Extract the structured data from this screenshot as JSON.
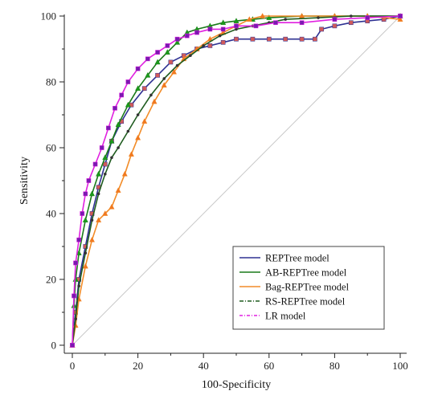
{
  "chart_data": {
    "type": "line",
    "title": "",
    "xlabel": "100-Specificity",
    "ylabel": "Sensitivity",
    "xlim": [
      0,
      100
    ],
    "ylim": [
      0,
      100
    ],
    "x_ticks": [
      "0",
      "20",
      "40",
      "60",
      "80",
      "100"
    ],
    "y_ticks": [
      "0",
      "20",
      "40",
      "60",
      "80",
      "100"
    ],
    "grid": false,
    "legend_position": "bottom-right",
    "reference_line": {
      "from": [
        0,
        0
      ],
      "to": [
        100,
        100
      ],
      "color": "#c8c8c8"
    },
    "series": [
      {
        "name": "REPTree model",
        "color": "#2e3192",
        "marker": "square",
        "marker_color": "#d05a5a",
        "points": [
          [
            0,
            0
          ],
          [
            1,
            10
          ],
          [
            2,
            20
          ],
          [
            4,
            30
          ],
          [
            6,
            40
          ],
          [
            8,
            48
          ],
          [
            10,
            55
          ],
          [
            12,
            62
          ],
          [
            15,
            68
          ],
          [
            18,
            73
          ],
          [
            22,
            78
          ],
          [
            26,
            82
          ],
          [
            30,
            86
          ],
          [
            34,
            88
          ],
          [
            38,
            90
          ],
          [
            42,
            91
          ],
          [
            46,
            92
          ],
          [
            50,
            93
          ],
          [
            55,
            93
          ],
          [
            60,
            93
          ],
          [
            65,
            93
          ],
          [
            70,
            93
          ],
          [
            74,
            93
          ],
          [
            76,
            96
          ],
          [
            80,
            97
          ],
          [
            85,
            98
          ],
          [
            90,
            98.5
          ],
          [
            95,
            99
          ],
          [
            100,
            100
          ]
        ]
      },
      {
        "name": "AB-REPTree model",
        "color": "#1a7a1a",
        "marker": "triangle",
        "marker_color": "#1a9a1a",
        "points": [
          [
            0,
            0
          ],
          [
            0.5,
            12
          ],
          [
            1,
            20
          ],
          [
            2,
            28
          ],
          [
            4,
            38
          ],
          [
            6,
            46
          ],
          [
            8,
            52
          ],
          [
            10,
            57
          ],
          [
            12,
            62
          ],
          [
            14,
            67
          ],
          [
            17,
            73
          ],
          [
            20,
            78
          ],
          [
            23,
            82
          ],
          [
            26,
            86
          ],
          [
            29,
            89
          ],
          [
            32,
            92
          ],
          [
            35,
            95
          ],
          [
            38,
            96
          ],
          [
            42,
            97
          ],
          [
            46,
            98
          ],
          [
            50,
            98.5
          ],
          [
            55,
            99
          ],
          [
            60,
            99.5
          ],
          [
            70,
            100
          ],
          [
            80,
            100
          ],
          [
            90,
            100
          ],
          [
            100,
            100
          ]
        ]
      },
      {
        "name": "Bag-REPTree model",
        "color": "#f28c28",
        "marker": "triangle",
        "marker_color": "#f07820",
        "points": [
          [
            0,
            0
          ],
          [
            1,
            6
          ],
          [
            2,
            14
          ],
          [
            4,
            24
          ],
          [
            6,
            32
          ],
          [
            8,
            38
          ],
          [
            10,
            40
          ],
          [
            12,
            42
          ],
          [
            14,
            47
          ],
          [
            16,
            52
          ],
          [
            18,
            58
          ],
          [
            20,
            63
          ],
          [
            22,
            68
          ],
          [
            25,
            74
          ],
          [
            28,
            79
          ],
          [
            31,
            83
          ],
          [
            34,
            87
          ],
          [
            38,
            90
          ],
          [
            42,
            93
          ],
          [
            46,
            95
          ],
          [
            50,
            97
          ],
          [
            54,
            99
          ],
          [
            58,
            100
          ],
          [
            70,
            100
          ],
          [
            80,
            100
          ],
          [
            90,
            100
          ],
          [
            100,
            99
          ]
        ]
      },
      {
        "name": "RS-REPTree model",
        "color": "#1f5c1f",
        "marker": "dot",
        "marker_color": "#333333",
        "points": [
          [
            0,
            0
          ],
          [
            1,
            8
          ],
          [
            2,
            18
          ],
          [
            4,
            28
          ],
          [
            6,
            38
          ],
          [
            8,
            46
          ],
          [
            10,
            52
          ],
          [
            12,
            57
          ],
          [
            14,
            60
          ],
          [
            17,
            65
          ],
          [
            20,
            70
          ],
          [
            24,
            76
          ],
          [
            28,
            81
          ],
          [
            32,
            85
          ],
          [
            36,
            88
          ],
          [
            40,
            91
          ],
          [
            45,
            94
          ],
          [
            50,
            96
          ],
          [
            55,
            97
          ],
          [
            60,
            98
          ],
          [
            65,
            99
          ],
          [
            75,
            99.5
          ],
          [
            85,
            100
          ],
          [
            100,
            100
          ]
        ]
      },
      {
        "name": "LR model",
        "color": "#e020e0",
        "marker": "square",
        "marker_color": "#7a1ab0",
        "points": [
          [
            0,
            0
          ],
          [
            0.5,
            15
          ],
          [
            1,
            25
          ],
          [
            2,
            32
          ],
          [
            3,
            40
          ],
          [
            4,
            46
          ],
          [
            5,
            50
          ],
          [
            7,
            55
          ],
          [
            9,
            60
          ],
          [
            11,
            66
          ],
          [
            13,
            72
          ],
          [
            15,
            76
          ],
          [
            17,
            80
          ],
          [
            20,
            84
          ],
          [
            23,
            87
          ],
          [
            26,
            89
          ],
          [
            29,
            91
          ],
          [
            32,
            93
          ],
          [
            35,
            94
          ],
          [
            38,
            95
          ],
          [
            42,
            96
          ],
          [
            46,
            96
          ],
          [
            50,
            97
          ],
          [
            56,
            97
          ],
          [
            62,
            98
          ],
          [
            70,
            98
          ],
          [
            80,
            99
          ],
          [
            90,
            99.5
          ],
          [
            100,
            100
          ]
        ]
      }
    ]
  }
}
